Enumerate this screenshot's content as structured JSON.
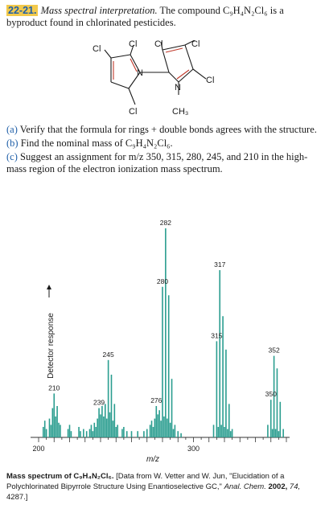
{
  "problem": {
    "number": "22-21.",
    "title": "Mass spectral interpretation.",
    "text_prefix": "The compound",
    "formula": "C₉H₄N₂Cl₆",
    "text_suffix": "is a byproduct found in chlorinated pesticides."
  },
  "structure": {
    "atoms": [
      "Cl",
      "Cl",
      "Cl",
      "Cl",
      "N",
      "Cl",
      "N",
      "Cl",
      "CH₃"
    ]
  },
  "parts": [
    {
      "label": "(a)",
      "text": "Verify that the formula for rings + double bonds agrees with the structure."
    },
    {
      "label": "(b)",
      "text": "Find the nominal mass of C₉H₄N₂Cl₆."
    },
    {
      "label": "(c)",
      "text": "Suggest an assignment for m/z 350, 315, 280, 245, and 210 in the high-mass region of the electron ionization mass spectrum."
    }
  ],
  "chart_data": {
    "type": "bar",
    "xlabel": "m/z",
    "ylabel": "Detector response",
    "xlim": [
      200,
      360
    ],
    "ylim": [
      0,
      100
    ],
    "xticks_labeled": [
      200,
      300
    ],
    "peaks": [
      {
        "mz": 203,
        "value": 5
      },
      {
        "mz": 204,
        "value": 8
      },
      {
        "mz": 205,
        "value": 4
      },
      {
        "mz": 207,
        "value": 9
      },
      {
        "mz": 208,
        "value": 6
      },
      {
        "mz": 209,
        "value": 14
      },
      {
        "mz": 210,
        "value": 21,
        "label": "210"
      },
      {
        "mz": 211,
        "value": 10
      },
      {
        "mz": 212,
        "value": 15
      },
      {
        "mz": 213,
        "value": 7
      },
      {
        "mz": 214,
        "value": 6
      },
      {
        "mz": 219,
        "value": 4
      },
      {
        "mz": 220,
        "value": 6
      },
      {
        "mz": 221,
        "value": 3
      },
      {
        "mz": 226,
        "value": 5
      },
      {
        "mz": 227,
        "value": 3
      },
      {
        "mz": 229,
        "value": 4
      },
      {
        "mz": 231,
        "value": 3
      },
      {
        "mz": 233,
        "value": 4
      },
      {
        "mz": 234,
        "value": 6
      },
      {
        "mz": 235,
        "value": 3
      },
      {
        "mz": 236,
        "value": 7
      },
      {
        "mz": 237,
        "value": 5
      },
      {
        "mz": 238,
        "value": 9
      },
      {
        "mz": 239,
        "value": 14,
        "label": "239"
      },
      {
        "mz": 240,
        "value": 11
      },
      {
        "mz": 241,
        "value": 15
      },
      {
        "mz": 242,
        "value": 10
      },
      {
        "mz": 243,
        "value": 16
      },
      {
        "mz": 244,
        "value": 9
      },
      {
        "mz": 245,
        "value": 37,
        "label": "245"
      },
      {
        "mz": 246,
        "value": 12
      },
      {
        "mz": 247,
        "value": 30
      },
      {
        "mz": 248,
        "value": 8
      },
      {
        "mz": 249,
        "value": 16
      },
      {
        "mz": 250,
        "value": 5
      },
      {
        "mz": 251,
        "value": 6
      },
      {
        "mz": 254,
        "value": 4
      },
      {
        "mz": 255,
        "value": 5
      },
      {
        "mz": 257,
        "value": 3
      },
      {
        "mz": 260,
        "value": 3
      },
      {
        "mz": 264,
        "value": 3
      },
      {
        "mz": 268,
        "value": 3
      },
      {
        "mz": 270,
        "value": 4
      },
      {
        "mz": 272,
        "value": 6
      },
      {
        "mz": 273,
        "value": 8
      },
      {
        "mz": 274,
        "value": 5
      },
      {
        "mz": 275,
        "value": 9
      },
      {
        "mz": 276,
        "value": 15,
        "label": "276"
      },
      {
        "mz": 277,
        "value": 11
      },
      {
        "mz": 278,
        "value": 13
      },
      {
        "mz": 279,
        "value": 8
      },
      {
        "mz": 280,
        "value": 72,
        "label": "280"
      },
      {
        "mz": 281,
        "value": 10
      },
      {
        "mz": 282,
        "value": 100,
        "label": "282"
      },
      {
        "mz": 283,
        "value": 9
      },
      {
        "mz": 284,
        "value": 68
      },
      {
        "mz": 285,
        "value": 7
      },
      {
        "mz": 286,
        "value": 28
      },
      {
        "mz": 287,
        "value": 4
      },
      {
        "mz": 288,
        "value": 6
      },
      {
        "mz": 290,
        "value": 3
      },
      {
        "mz": 292,
        "value": 2
      },
      {
        "mz": 313,
        "value": 6
      },
      {
        "mz": 315,
        "value": 46,
        "label": "315"
      },
      {
        "mz": 316,
        "value": 5
      },
      {
        "mz": 317,
        "value": 80,
        "label": "317"
      },
      {
        "mz": 318,
        "value": 6
      },
      {
        "mz": 319,
        "value": 58
      },
      {
        "mz": 320,
        "value": 5
      },
      {
        "mz": 321,
        "value": 42
      },
      {
        "mz": 322,
        "value": 4
      },
      {
        "mz": 323,
        "value": 16
      },
      {
        "mz": 324,
        "value": 3
      },
      {
        "mz": 325,
        "value": 4
      },
      {
        "mz": 348,
        "value": 6
      },
      {
        "mz": 350,
        "value": 18,
        "label": "350"
      },
      {
        "mz": 351,
        "value": 4
      },
      {
        "mz": 352,
        "value": 39,
        "label": "352"
      },
      {
        "mz": 353,
        "value": 4
      },
      {
        "mz": 354,
        "value": 33
      },
      {
        "mz": 355,
        "value": 3
      },
      {
        "mz": 356,
        "value": 17
      },
      {
        "mz": 358,
        "value": 4
      }
    ]
  },
  "caption": {
    "lead": "Mass spectrum of C₉H₄N₂Cl₆.",
    "source_prefix": "[Data from W. Vetter and W. Jun, \"Elucidation of a Polychlorinated Bipyrrole Structure Using Enantioselective GC,\"",
    "journal": "Anal. Chem.",
    "year": "2002,",
    "volume": "74,",
    "pages": "4287.]"
  }
}
